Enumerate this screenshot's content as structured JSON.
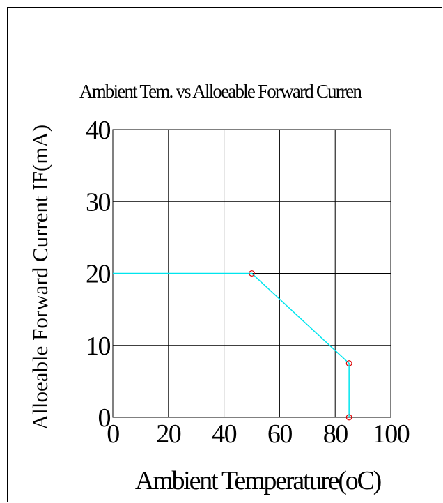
{
  "chart_data": {
    "type": "line",
    "title": "Ambient Tem. vs Alloeable Forward Curren",
    "xlabel": "Ambient Temperature(oC)",
    "ylabel": "Alloeable Forward Current IF(mA)",
    "xlim": [
      0,
      100
    ],
    "ylim": [
      0,
      40
    ],
    "x_ticks": [
      "0",
      "20",
      "40",
      "60",
      "80",
      "100"
    ],
    "y_ticks": [
      "0",
      "10",
      "20",
      "30",
      "40"
    ],
    "grid": true,
    "series": [
      {
        "color": "#00e5ee",
        "points": [
          {
            "x": 0,
            "y": 20
          },
          {
            "x": 50,
            "y": 20
          },
          {
            "x": 85,
            "y": 7.5
          },
          {
            "x": 85,
            "y": 0
          }
        ]
      }
    ],
    "markers": {
      "color": "#dd0000",
      "points": [
        {
          "x": 50,
          "y": 20
        },
        {
          "x": 85,
          "y": 7.5
        },
        {
          "x": 85,
          "y": 0
        }
      ]
    }
  }
}
